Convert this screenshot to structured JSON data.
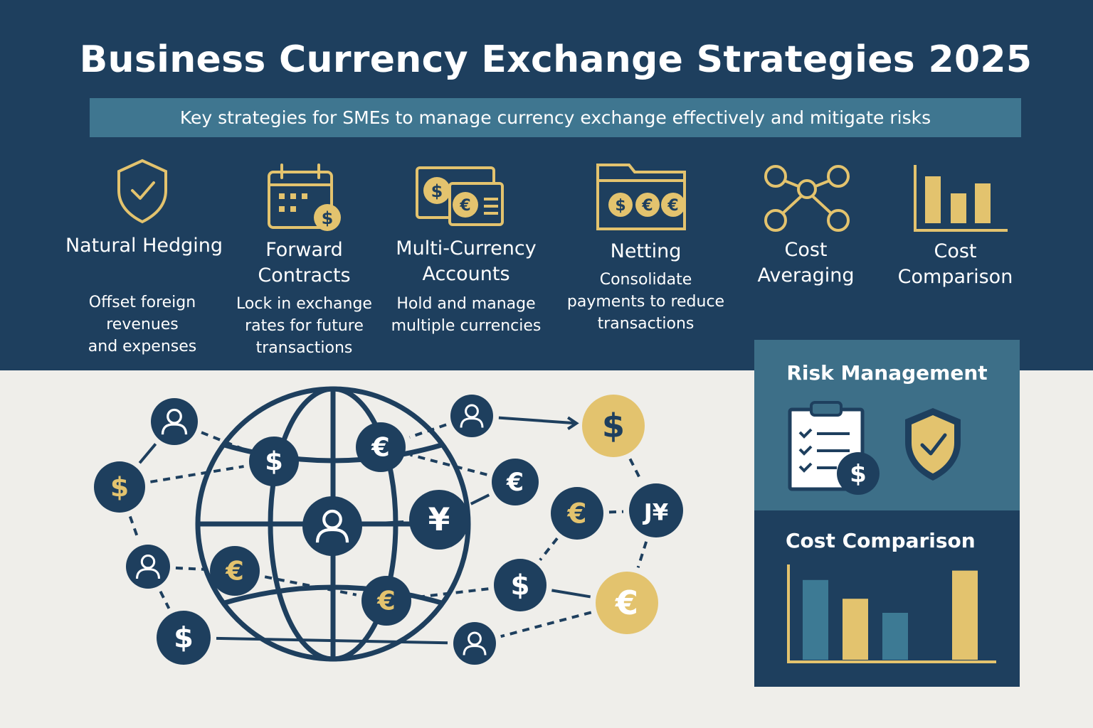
{
  "header": {
    "title": "Business Currency Exchange Strategies 2025",
    "subtitle": "Key strategies for SMEs to manage currency exchange effectively and mitigate risks"
  },
  "strategies": [
    {
      "icon": "shield-check-icon",
      "title": "Natural Hedging",
      "description_lines": [
        "Offset foreign",
        "revenues",
        "and expenses"
      ]
    },
    {
      "icon": "calendar-dollar-icon",
      "title": "Forward Contracts",
      "description_lines": [
        "Lock in exchange",
        "rates for future",
        "transactions"
      ]
    },
    {
      "icon": "wallet-currency-icon",
      "title": "Multi-Currency Accounts",
      "description_lines": [
        "Hold and manage",
        "multiple currencies"
      ]
    },
    {
      "icon": "folder-currency-icon",
      "title": "Netting",
      "description_lines": [
        "Consolidate",
        "payments to reduce",
        "transactions"
      ]
    },
    {
      "icon": "network-nodes-icon",
      "title": "Cost Averaging",
      "description_lines": []
    },
    {
      "icon": "bar-chart-icon",
      "title": "Cost Comparison",
      "description_lines": []
    }
  ],
  "panels": {
    "risk_management": {
      "title": "Risk Management",
      "icons": [
        "clipboard-checklist-icon",
        "shield-check-icon"
      ],
      "badge_symbol": "$"
    },
    "cost_comparison": {
      "title": "Cost Comparison",
      "bar_levels": [
        0.85,
        0.65,
        0.5,
        0.95
      ]
    }
  },
  "network": {
    "symbols": {
      "dollar": "$",
      "euro": "€",
      "yen": "¥",
      "yen_pair": "J¥"
    }
  },
  "colors": {
    "navy": "#1e3f5e",
    "teal": "#3f7690",
    "gold": "#e3c36e",
    "light_bg": "#efeeea",
    "bar_teal": "#3d7a94"
  }
}
